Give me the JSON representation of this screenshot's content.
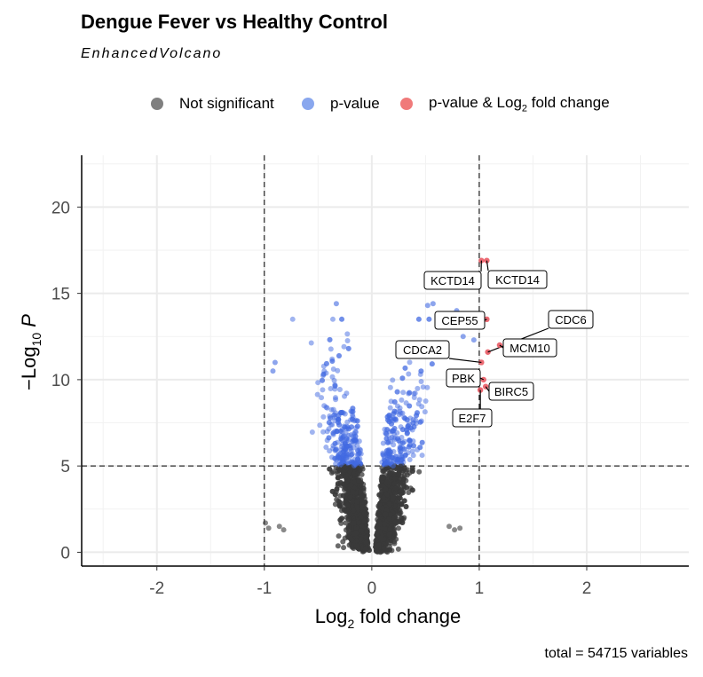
{
  "title": "Dengue Fever vs Healthy Control",
  "subtitle": "EnhancedVolcano",
  "legend": [
    {
      "label": "Not significant",
      "color": "#808080"
    },
    {
      "label": "p-value",
      "color": "#89a7ee"
    },
    {
      "label_main": "p-value & Log",
      "label_sub": "2",
      "label_tail": " fold change",
      "color": "#f07a7a"
    }
  ],
  "caption": "total = 54715 variables",
  "colors": {
    "ns": "#3a3a3a",
    "p": "#4169e1",
    "fc": "#e8505b"
  },
  "chart_data": {
    "type": "scatter",
    "title": "Dengue Fever vs Healthy Control",
    "subtitle": "EnhancedVolcano",
    "xlabel": "Log2 fold change",
    "ylabel": "-Log10 P",
    "xlim": [
      -2.7,
      2.95
    ],
    "ylim": [
      -0.8,
      23
    ],
    "x_ticks": [
      "-2",
      "-1",
      "0",
      "1",
      "2"
    ],
    "y_ticks": [
      "0",
      "5",
      "10",
      "15",
      "20"
    ],
    "grid": true,
    "thresholds": {
      "log2fc": [
        -1,
        1
      ],
      "neg_log10_p": 5
    },
    "total_variables": 54715,
    "labeled_genes": [
      {
        "gene": "KCTD14",
        "x": 1.02,
        "y": 16.9
      },
      {
        "gene": "KCTD14",
        "x": 1.07,
        "y": 16.9
      },
      {
        "gene": "CEP55",
        "x": 1.07,
        "y": 13.5
      },
      {
        "gene": "CDC6",
        "x": 1.08,
        "y": 11.6
      },
      {
        "gene": "MCM10",
        "x": 1.19,
        "y": 12.0
      },
      {
        "gene": "CDCA2",
        "x": 1.02,
        "y": 11.0
      },
      {
        "gene": "PBK",
        "x": 1.04,
        "y": 10.0
      },
      {
        "gene": "BIRC5",
        "x": 1.06,
        "y": 9.6
      },
      {
        "gene": "E2F7",
        "x": 1.01,
        "y": 9.4
      }
    ],
    "outlier_points": [
      {
        "x": -0.99,
        "y": 1.7
      },
      {
        "x": -0.96,
        "y": 1.4
      },
      {
        "x": -0.86,
        "y": 1.5
      },
      {
        "x": -0.82,
        "y": 1.3
      },
      {
        "x": 0.72,
        "y": 1.5
      },
      {
        "x": 0.77,
        "y": 1.3
      },
      {
        "x": 0.82,
        "y": 1.4
      },
      {
        "x": -0.9,
        "y": 11.0
      },
      {
        "x": -0.92,
        "y": 10.5
      },
      {
        "x": -0.33,
        "y": 14.4
      },
      {
        "x": 0.52,
        "y": 14.3
      },
      {
        "x": 0.57,
        "y": 14.4
      },
      {
        "x": 0.79,
        "y": 14.0
      },
      {
        "x": 0.85,
        "y": 12.5
      },
      {
        "x": 0.95,
        "y": 12.3
      }
    ]
  }
}
